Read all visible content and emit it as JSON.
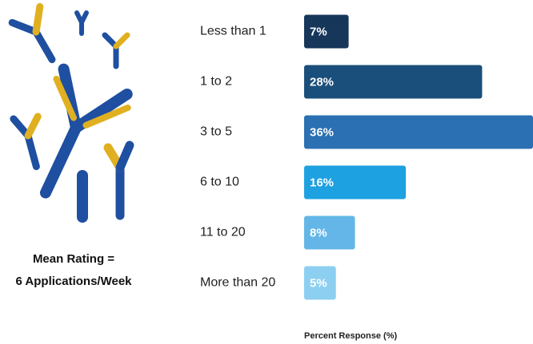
{
  "chart_data": {
    "type": "hbar",
    "categories": [
      "Less than 1",
      "1 to 2",
      "3 to 5",
      "6 to 10",
      "11 to 20",
      "More than 20"
    ],
    "values": [
      7,
      28,
      36,
      16,
      8,
      5
    ],
    "value_labels": [
      "7%",
      "28%",
      "36%",
      "16%",
      "8%",
      "5%"
    ],
    "colors": [
      "#16365a",
      "#1b4f7b",
      "#2a70b2",
      "#1ea1e1",
      "#63b6e7",
      "#8ccff1"
    ],
    "xlim": [
      0,
      36
    ],
    "xlabel": "Percent Response (%)",
    "annotation": [
      "Mean Rating =",
      "6 Applications/Week"
    ]
  }
}
